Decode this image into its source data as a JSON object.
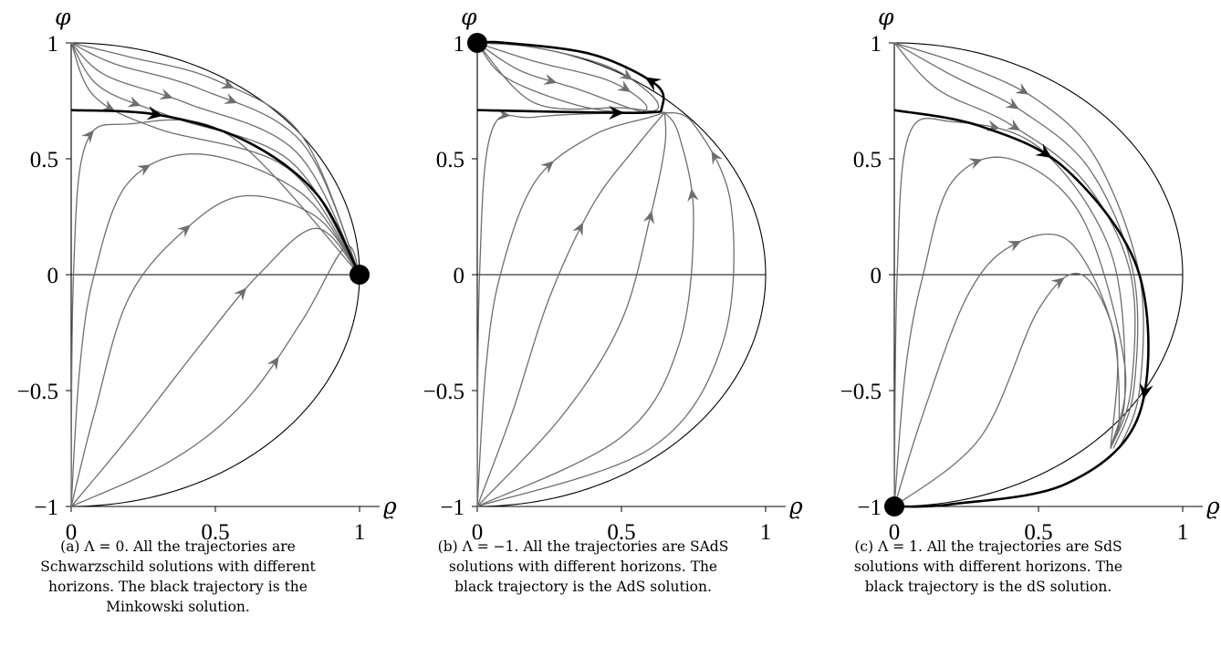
{
  "axes": {
    "x_symbol": "ϱ",
    "y_symbol": "φ",
    "x_ticks": [
      "0",
      "0.5",
      "1"
    ],
    "y_ticks": [
      "1",
      "0.5",
      "0",
      "−0.5",
      "−1"
    ]
  },
  "colors": {
    "trajectory": "#6e6e6e",
    "special_trajectory": "#000000",
    "boundary": "#000000"
  },
  "panels": [
    {
      "id": "a",
      "lambda": 0,
      "caption": [
        "(a) Λ = 0. All the trajectories are",
        "Schwarzschild solutions with different",
        "horizons. The black trajectory is the",
        "Minkowski solution."
      ]
    },
    {
      "id": "b",
      "lambda": -1,
      "caption": [
        "(b) Λ = −1. All the trajectories are SAdS",
        "solutions with different horizons. The",
        "black trajectory is the AdS solution."
      ]
    },
    {
      "id": "c",
      "lambda": 1,
      "caption": [
        "(c) Λ = 1. All the trajectories are SdS",
        "solutions with different horizons. The",
        "black trajectory is the dS solution."
      ]
    }
  ]
}
